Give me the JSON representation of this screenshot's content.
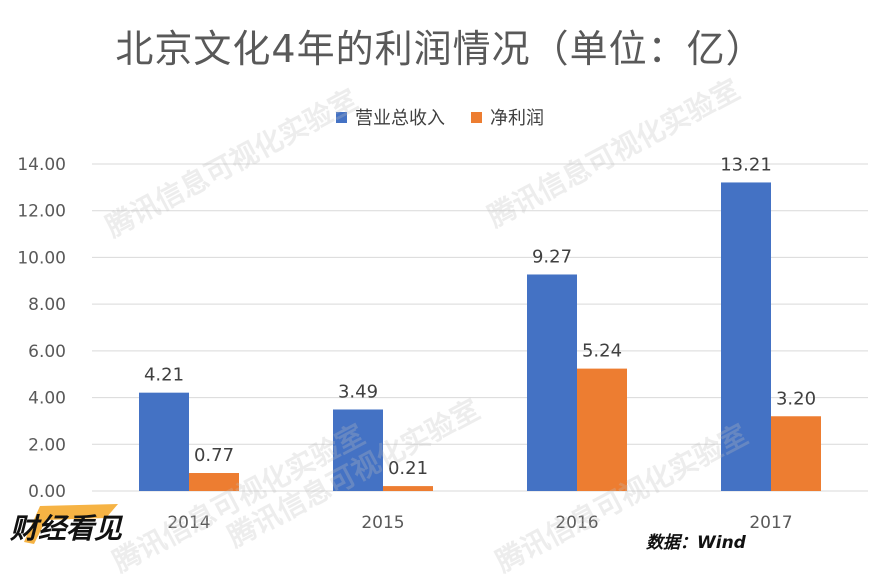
{
  "title": "北京文化4年的利润情况（单位：亿）",
  "source": "数据：Wind",
  "watermark": "腾讯信息可视化实验室",
  "logo_text": "财经看见",
  "colors": {
    "revenue": "#4472C4",
    "profit": "#ED7D31",
    "grid": "#D9D9D9",
    "axis_text": "#595959"
  },
  "chart_data": {
    "type": "bar",
    "categories": [
      "2014",
      "2015",
      "2016",
      "2017"
    ],
    "series": [
      {
        "name": "营业总收入",
        "values": [
          4.21,
          3.49,
          9.27,
          13.21
        ],
        "labels": [
          "4.21",
          "3.49",
          "9.27",
          "13.21"
        ]
      },
      {
        "name": "净利润",
        "values": [
          0.77,
          0.21,
          5.24,
          3.2
        ],
        "labels": [
          "0.77",
          "0.21",
          "5.24",
          "3.20"
        ]
      }
    ],
    "ylim": [
      0,
      14
    ],
    "yticks": [
      "0.00",
      "2.00",
      "4.00",
      "6.00",
      "8.00",
      "10.00",
      "12.00",
      "14.00"
    ],
    "grid": true,
    "legend_position": "top-center"
  }
}
